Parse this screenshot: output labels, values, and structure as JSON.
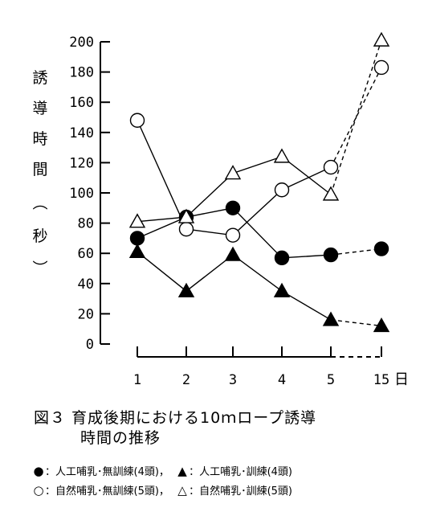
{
  "chart_data": {
    "type": "line",
    "title": "図３ 育成後期における10ｍロープ誘導時間の推移",
    "ylabel": "誘導時間（秒）",
    "xlabel": "",
    "categories": [
      "1",
      "2",
      "3",
      "4",
      "5",
      "15"
    ],
    "x_unit": "日",
    "ylim": [
      0,
      200
    ],
    "yticks": [
      0,
      20,
      40,
      60,
      80,
      100,
      120,
      140,
      160,
      180,
      200
    ],
    "grid": false,
    "note": "segment from 5 to 15 drawn dashed (axis break)",
    "series": [
      {
        "name": "人工哺乳・無訓練（4頭）",
        "marker": "filled-circle",
        "values": [
          70,
          84,
          90,
          57,
          59,
          63
        ]
      },
      {
        "name": "人工哺乳・訓練（4頭）",
        "marker": "filled-triangle",
        "values": [
          61,
          35,
          59,
          35,
          16,
          12
        ]
      },
      {
        "name": "自然哺乳・無訓練（5頭）",
        "marker": "open-circle",
        "values": [
          148,
          76,
          72,
          102,
          117,
          183
        ]
      },
      {
        "name": "自然哺乳・訓練（5頭）",
        "marker": "open-triangle",
        "values": [
          81,
          84,
          113,
          124,
          99,
          201
        ]
      }
    ]
  },
  "figure": {
    "caption_line1": "図３ 育成後期における10ｍロープ誘導",
    "caption_line2": "時間の推移",
    "y_axis_chars": [
      "誘",
      "導",
      "時",
      "間",
      "（",
      "秒",
      "）"
    ]
  },
  "legend": {
    "rows": [
      [
        {
          "symbol": "●",
          "text": "：人工哺乳･無訓練(4頭)，"
        },
        {
          "symbol": "▲",
          "text": "：人工哺乳･訓練(4頭)"
        }
      ],
      [
        {
          "symbol": "○",
          "text": "：自然哺乳･無訓練(5頭)，"
        },
        {
          "symbol": "△",
          "text": "：自然哺乳･訓練(5頭)"
        }
      ]
    ]
  }
}
